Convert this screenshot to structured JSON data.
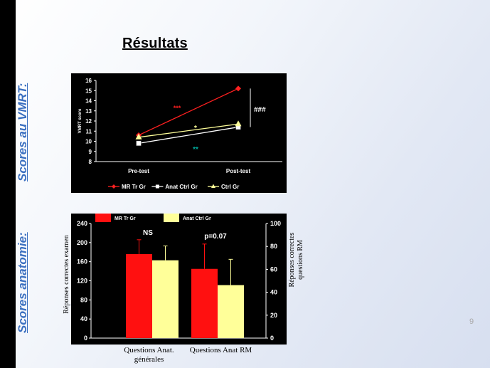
{
  "slide": {
    "title": "Résultats",
    "side_label_1": "Scores au VMRT:",
    "side_label_2": "Scores anatomie:",
    "page_number": "9"
  },
  "chart_data": [
    {
      "type": "line",
      "ylabel": "VMRT score",
      "ylim": [
        8,
        16
      ],
      "yticks": [
        "8",
        "9",
        "10",
        "11",
        "12",
        "13",
        "14",
        "15",
        "16"
      ],
      "categories": [
        "Pre-test",
        "Post-test"
      ],
      "series": [
        {
          "name": "MR Tr Gr",
          "values": [
            10.6,
            15.2
          ],
          "color": "#ff2020",
          "marker": "diamond"
        },
        {
          "name": "Anat Ctrl Gr",
          "values": [
            9.8,
            11.4
          ],
          "color": "#ffffff",
          "marker": "square"
        },
        {
          "name": "Ctrl Gr",
          "values": [
            10.4,
            11.7
          ],
          "color": "#ffff99",
          "marker": "triangle"
        }
      ],
      "annotations": [
        {
          "text": "***",
          "color": "#ff2020"
        },
        {
          "text": "*",
          "color": "#ffff99"
        },
        {
          "text": "**",
          "color": "#00b0a0"
        },
        {
          "text": "###",
          "color": "#ffffff"
        }
      ]
    },
    {
      "type": "bar",
      "categories": [
        "Questions Anat. générales",
        "Questions Anat RM"
      ],
      "left_ylim": [
        0,
        240
      ],
      "left_yticks": [
        "0",
        "40",
        "80",
        "120",
        "160",
        "200",
        "240"
      ],
      "left_ylabel": "Réponses correctes examen",
      "right_ylim": [
        0,
        100
      ],
      "right_yticks": [
        "0",
        "20",
        "40",
        "60",
        "80",
        "100"
      ],
      "right_ylabel_1": "Réponses correctes",
      "right_ylabel_2": "questions RM",
      "series": [
        {
          "name": "MR Tr Gr",
          "values": [
            176,
            145
          ],
          "errors": [
            30,
            52
          ],
          "color": "#ff1010"
        },
        {
          "name": "Anat Ctrl Gr",
          "values": [
            163,
            111
          ],
          "errors": [
            30,
            54
          ],
          "color": "#ffff99"
        }
      ],
      "annotations": [
        "NS",
        "p=0.07"
      ],
      "xlabel_1": "Questions Anat.",
      "xlabel_1b": "générales",
      "xlabel_2": "Questions Anat RM"
    }
  ]
}
